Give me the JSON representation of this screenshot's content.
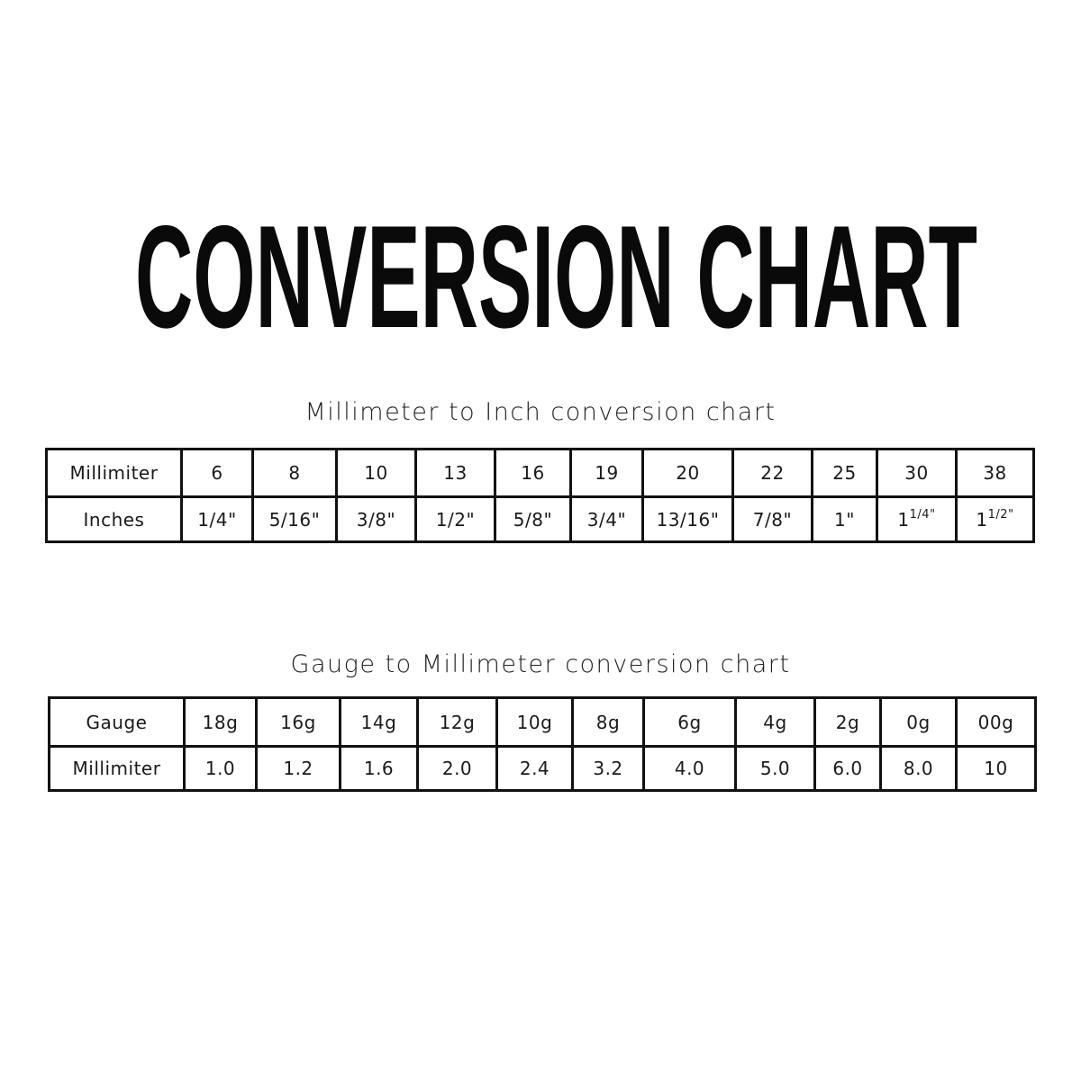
{
  "title": "CONVERSION CHART",
  "mm_to_inch": {
    "caption": "Millimeter to Inch conversion chart",
    "rows": [
      {
        "label": "Millimiter",
        "cells": [
          {
            "v": "6"
          },
          {
            "v": "8"
          },
          {
            "v": "10"
          },
          {
            "v": "13"
          },
          {
            "v": "16"
          },
          {
            "v": "19"
          },
          {
            "v": "20"
          },
          {
            "v": "22"
          },
          {
            "v": "25"
          },
          {
            "v": "30"
          },
          {
            "v": "38"
          }
        ]
      },
      {
        "label": "Inches",
        "cells": [
          {
            "v": "1/4\""
          },
          {
            "v": "5/16\""
          },
          {
            "v": "3/8\""
          },
          {
            "v": "1/2\""
          },
          {
            "v": "5/8\""
          },
          {
            "v": "3/4\""
          },
          {
            "v": "13/16\""
          },
          {
            "v": "7/8\""
          },
          {
            "v": "1\""
          },
          {
            "v": "1",
            "sup": "1/4\""
          },
          {
            "v": "1",
            "sup": "1/2\""
          }
        ]
      }
    ]
  },
  "gauge_to_mm": {
    "caption": "Gauge to Millimeter conversion chart",
    "rows": [
      {
        "label": "Gauge",
        "cells": [
          {
            "v": "18g"
          },
          {
            "v": "16g"
          },
          {
            "v": "14g"
          },
          {
            "v": "12g"
          },
          {
            "v": "10g"
          },
          {
            "v": "8g"
          },
          {
            "v": "6g"
          },
          {
            "v": "4g"
          },
          {
            "v": "2g"
          },
          {
            "v": "0g"
          },
          {
            "v": "00g"
          }
        ]
      },
      {
        "label": "Millimiter",
        "cells": [
          {
            "v": "1.0"
          },
          {
            "v": "1.2"
          },
          {
            "v": "1.6"
          },
          {
            "v": "2.0"
          },
          {
            "v": "2.4"
          },
          {
            "v": "3.2"
          },
          {
            "v": "4.0"
          },
          {
            "v": "5.0"
          },
          {
            "v": "6.0"
          },
          {
            "v": "8.0"
          },
          {
            "v": "10"
          }
        ]
      }
    ]
  }
}
